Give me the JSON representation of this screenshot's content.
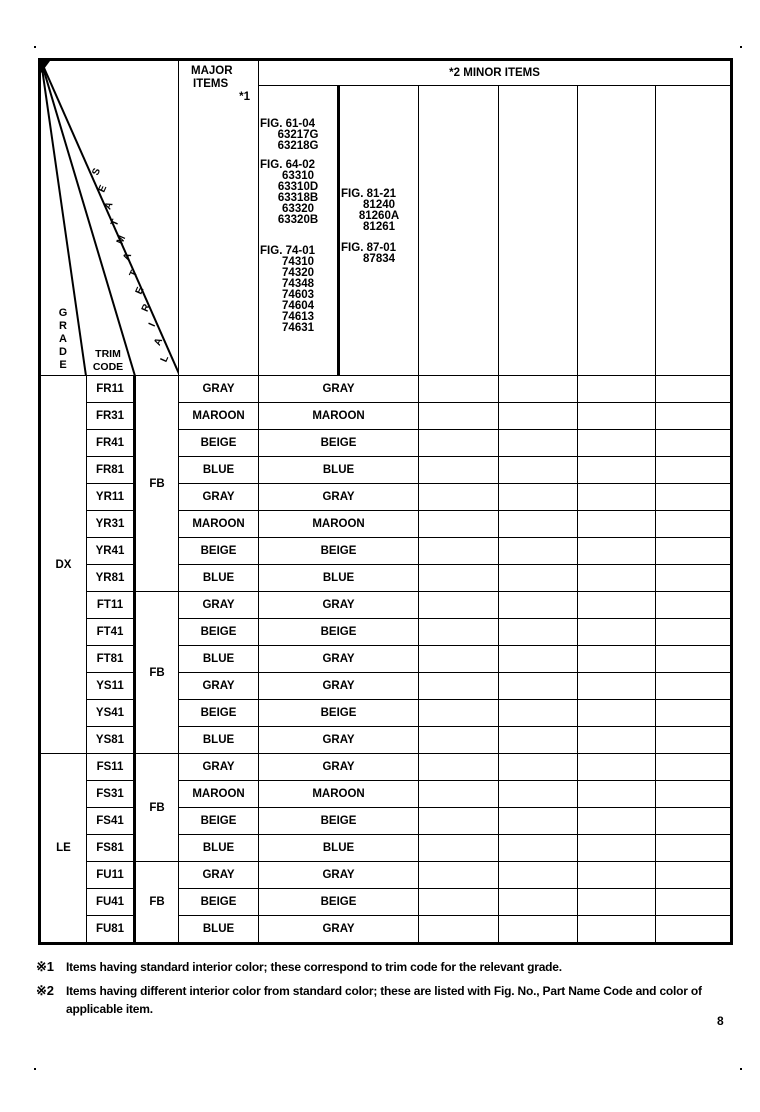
{
  "header": {
    "corner": {
      "grade": "GRADE",
      "trim_code": [
        "TRIM",
        "CODE"
      ],
      "seat_material": "SEATMATERIAL"
    },
    "major_items": [
      "MAJOR",
      "ITEMS",
      "*1"
    ],
    "minor_items": "*2  MINOR ITEMS",
    "minor_figs": [
      [
        {
          "fig": "FIG. 61-04",
          "parts": [
            "63217G",
            "63218G"
          ]
        },
        {
          "fig": "FIG. 64-02",
          "parts": [
            "63310",
            "63310D",
            "63318B",
            "63320",
            "63320B"
          ]
        },
        {
          "fig": "FIG. 74-01",
          "parts": [
            "74310",
            "74320",
            "74348",
            "74603",
            "74604",
            "74613",
            "74631"
          ]
        }
      ],
      [
        {
          "fig": "FIG. 81-21",
          "parts": [
            "81240",
            "81260A",
            "81261"
          ]
        },
        {
          "fig": "FIG. 87-01",
          "parts": [
            "87834"
          ]
        }
      ]
    ]
  },
  "groups": [
    {
      "grade": "DX",
      "seat_groups": [
        {
          "seat": "FB",
          "rows": [
            {
              "trim": "FR11",
              "major": "GRAY",
              "minor": "GRAY"
            },
            {
              "trim": "FR31",
              "major": "MAROON",
              "minor": "MAROON"
            },
            {
              "trim": "FR41",
              "major": "BEIGE",
              "minor": "BEIGE"
            },
            {
              "trim": "FR81",
              "major": "BLUE",
              "minor": "BLUE"
            },
            {
              "trim": "YR11",
              "major": "GRAY",
              "minor": "GRAY"
            },
            {
              "trim": "YR31",
              "major": "MAROON",
              "minor": "MAROON"
            },
            {
              "trim": "YR41",
              "major": "BEIGE",
              "minor": "BEIGE"
            },
            {
              "trim": "YR81",
              "major": "BLUE",
              "minor": "BLUE"
            }
          ]
        },
        {
          "seat": "FB",
          "rows": [
            {
              "trim": "FT11",
              "major": "GRAY",
              "minor": "GRAY"
            },
            {
              "trim": "FT41",
              "major": "BEIGE",
              "minor": "BEIGE"
            },
            {
              "trim": "FT81",
              "major": "BLUE",
              "minor": "GRAY"
            },
            {
              "trim": "YS11",
              "major": "GRAY",
              "minor": "GRAY"
            },
            {
              "trim": "YS41",
              "major": "BEIGE",
              "minor": "BEIGE"
            },
            {
              "trim": "YS81",
              "major": "BLUE",
              "minor": "GRAY"
            }
          ]
        }
      ]
    },
    {
      "grade": "LE",
      "seat_groups": [
        {
          "seat": "FB",
          "rows": [
            {
              "trim": "FS11",
              "major": "GRAY",
              "minor": "GRAY"
            },
            {
              "trim": "FS31",
              "major": "MAROON",
              "minor": "MAROON"
            },
            {
              "trim": "FS41",
              "major": "BEIGE",
              "minor": "BEIGE"
            },
            {
              "trim": "FS81",
              "major": "BLUE",
              "minor": "BLUE"
            }
          ]
        },
        {
          "seat": "FB",
          "rows": [
            {
              "trim": "FU11",
              "major": "GRAY",
              "minor": "GRAY"
            },
            {
              "trim": "FU41",
              "major": "BEIGE",
              "minor": "BEIGE"
            },
            {
              "trim": "FU81",
              "major": "BLUE",
              "minor": "GRAY"
            }
          ]
        }
      ]
    }
  ],
  "notes": [
    {
      "mark": "※1",
      "text": "Items having standard interior color; these correspond to trim code for the relevant grade."
    },
    {
      "mark": "※2",
      "text": "Items having different interior color from standard color; these are listed with Fig. No., Part Name Code and color of applicable item."
    }
  ],
  "page_number": "8"
}
